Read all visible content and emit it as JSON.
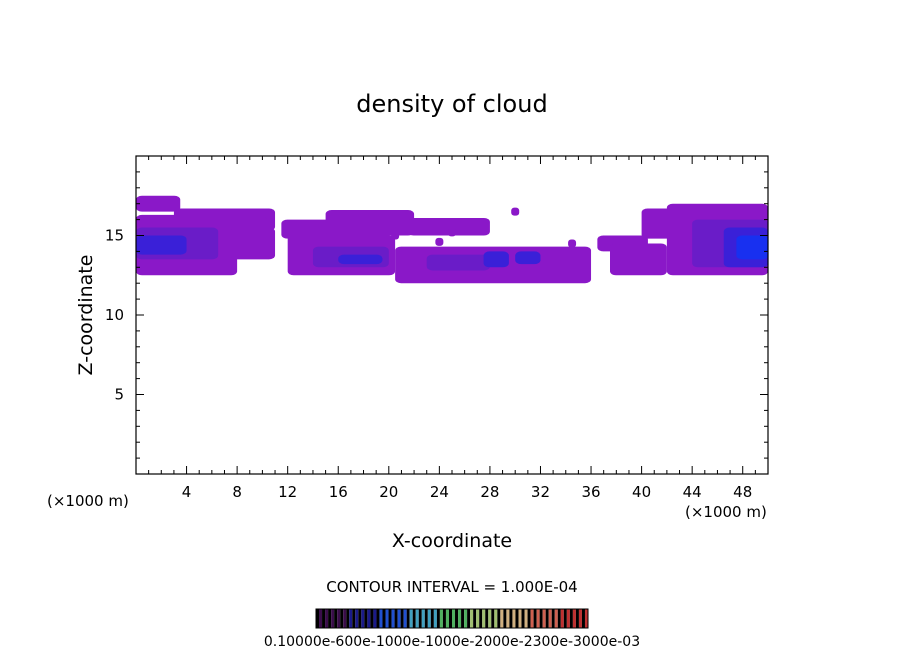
{
  "chart_data": {
    "type": "heatmap",
    "title": "density of cloud",
    "xlabel": "X-coordinate",
    "ylabel": "Z-coordinate",
    "x_unit_left": "(×1000 m)",
    "x_unit_right": "(×1000 m)",
    "xlim": [
      0,
      50
    ],
    "ylim": [
      0,
      20
    ],
    "x_ticks": [
      4,
      8,
      12,
      16,
      20,
      24,
      28,
      32,
      36,
      40,
      44,
      48
    ],
    "y_ticks": [
      5,
      10,
      15
    ],
    "contour_interval_text": "CONTOUR INTERVAL = 1.000E-04",
    "colorbar_label": "0.10000e-600e-1000e-1000e-2000e-2300e-3000e-03",
    "colorbar_colors": [
      "#3a0d4a",
      "#1a1a8a",
      "#2050d0",
      "#40a0c0",
      "#50b060",
      "#a0c070",
      "#d0b080",
      "#d06050",
      "#c03030"
    ],
    "cloud_colors": {
      "outer": "#8a18c8",
      "mid": "#6a1cc8",
      "core": "#3a20d8",
      "peak": "#1830f0"
    },
    "cloud_bands": [
      {
        "x": [
          0.0,
          3.5
        ],
        "z": [
          16.5,
          17.5
        ],
        "level": "outer"
      },
      {
        "x": [
          0.0,
          8.0
        ],
        "z": [
          12.5,
          16.3
        ],
        "level": "outer"
      },
      {
        "x": [
          3.0,
          11.0
        ],
        "z": [
          15.3,
          16.7
        ],
        "level": "outer"
      },
      {
        "x": [
          7.5,
          11.0
        ],
        "z": [
          13.5,
          15.5
        ],
        "level": "outer"
      },
      {
        "x": [
          0.0,
          6.5
        ],
        "z": [
          13.5,
          15.5
        ],
        "level": "mid"
      },
      {
        "x": [
          0.0,
          4.0
        ],
        "z": [
          13.8,
          15.0
        ],
        "level": "core"
      },
      {
        "x": [
          11.5,
          16.0
        ],
        "z": [
          14.8,
          16.0
        ],
        "level": "outer"
      },
      {
        "x": [
          15.0,
          22.0
        ],
        "z": [
          15.0,
          16.6
        ],
        "level": "outer"
      },
      {
        "x": [
          12.0,
          20.5
        ],
        "z": [
          12.5,
          15.0
        ],
        "level": "outer"
      },
      {
        "x": [
          14.0,
          20.0
        ],
        "z": [
          13.0,
          14.3
        ],
        "level": "mid"
      },
      {
        "x": [
          16.0,
          19.5
        ],
        "z": [
          13.2,
          13.8
        ],
        "level": "core"
      },
      {
        "x": [
          21.5,
          28.0
        ],
        "z": [
          15.0,
          16.1
        ],
        "level": "outer"
      },
      {
        "x": [
          20.5,
          36.0
        ],
        "z": [
          12.0,
          14.3
        ],
        "level": "outer"
      },
      {
        "x": [
          23.0,
          28.0
        ],
        "z": [
          12.8,
          13.8
        ],
        "level": "mid"
      },
      {
        "x": [
          27.5,
          29.5
        ],
        "z": [
          13.0,
          14.0
        ],
        "level": "core"
      },
      {
        "x": [
          30.0,
          32.0
        ],
        "z": [
          13.2,
          14.0
        ],
        "level": "core"
      },
      {
        "x": [
          36.5,
          40.5
        ],
        "z": [
          14.0,
          15.0
        ],
        "level": "outer"
      },
      {
        "x": [
          37.5,
          42.0
        ],
        "z": [
          12.5,
          14.5
        ],
        "level": "outer"
      },
      {
        "x": [
          40.0,
          45.0
        ],
        "z": [
          14.8,
          16.7
        ],
        "level": "outer"
      },
      {
        "x": [
          42.0,
          50.0
        ],
        "z": [
          12.5,
          17.0
        ],
        "level": "outer"
      },
      {
        "x": [
          44.0,
          50.0
        ],
        "z": [
          13.0,
          16.0
        ],
        "level": "mid"
      },
      {
        "x": [
          46.5,
          50.0
        ],
        "z": [
          13.0,
          15.5
        ],
        "level": "core"
      },
      {
        "x": [
          47.5,
          50.0
        ],
        "z": [
          13.5,
          15.0
        ],
        "level": "peak"
      }
    ],
    "cloud_specks": [
      {
        "x": 10.5,
        "z": 16.3
      },
      {
        "x": 20.5,
        "z": 15.0
      },
      {
        "x": 24.0,
        "z": 14.6
      },
      {
        "x": 25.0,
        "z": 15.2
      },
      {
        "x": 30.0,
        "z": 16.5
      },
      {
        "x": 34.5,
        "z": 14.5
      },
      {
        "x": 38.0,
        "z": 14.6
      }
    ]
  }
}
